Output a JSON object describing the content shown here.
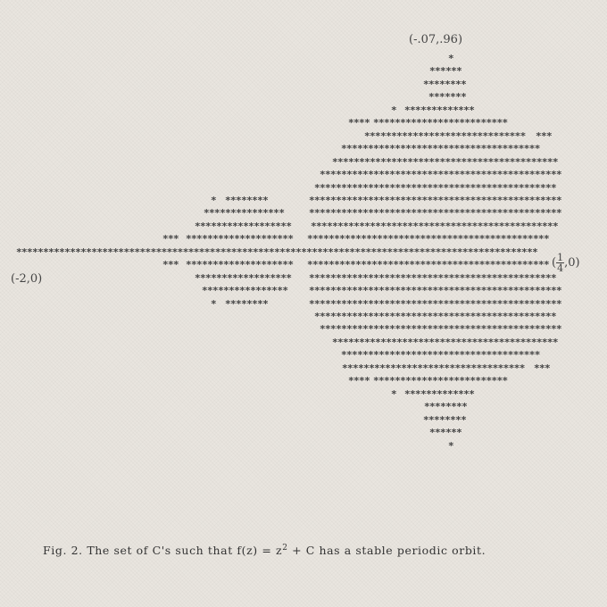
{
  "labels": {
    "top": "(-.07,.96)",
    "left": "(-2,0)",
    "right_num": "1",
    "right_den": "4",
    "right_suffix": ",0)",
    "right_prefix": "("
  },
  "caption": {
    "prefix": "Fig. 2.  The set of  C's  such that  f(z) = z",
    "exponent": "2",
    "suffix": " + C  has a stable periodic orbit."
  },
  "rows": [
    {
      "segs": [
        [
          502,
          509
        ]
      ]
    },
    {
      "segs": [
        [
          481,
          517
        ]
      ]
    },
    {
      "segs": [
        [
          474,
          524
        ]
      ]
    },
    {
      "segs": [
        [
          480,
          524
        ]
      ]
    },
    {
      "segs": [
        [
          438,
          445
        ],
        [
          453,
          532
        ]
      ]
    },
    {
      "segs": [
        [
          390,
          413
        ],
        [
          418,
          568
        ]
      ]
    },
    {
      "segs": [
        [
          408,
          589
        ],
        [
          600,
          620
        ]
      ]
    },
    {
      "segs": [
        [
          382,
          607
        ]
      ]
    },
    {
      "segs": [
        [
          372,
          627
        ]
      ]
    },
    {
      "segs": [
        [
          358,
          634
        ]
      ]
    },
    {
      "segs": [
        [
          352,
          625
        ]
      ]
    },
    {
      "segs": [
        [
          236,
          243
        ],
        [
          252,
          298
        ],
        [
          346,
          634
        ]
      ]
    },
    {
      "segs": [
        [
          228,
          322
        ],
        [
          346,
          634
        ]
      ]
    },
    {
      "segs": [
        [
          218,
          330
        ],
        [
          348,
          628
        ]
      ]
    },
    {
      "segs": [
        [
          182,
          200
        ],
        [
          208,
          330
        ],
        [
          344,
          616
        ]
      ]
    },
    {
      "segs": [
        [
          18,
          612
        ]
      ]
    },
    {
      "segs": [
        [
          182,
          200
        ],
        [
          208,
          330
        ],
        [
          344,
          618
        ]
      ]
    },
    {
      "segs": [
        [
          218,
          330
        ],
        [
          346,
          624
        ]
      ]
    },
    {
      "segs": [
        [
          226,
          322
        ],
        [
          346,
          634
        ]
      ]
    },
    {
      "segs": [
        [
          236,
          243
        ],
        [
          252,
          298
        ],
        [
          346,
          634
        ]
      ]
    },
    {
      "segs": [
        [
          352,
          624
        ]
      ]
    },
    {
      "segs": [
        [
          358,
          634
        ]
      ]
    },
    {
      "segs": [
        [
          372,
          627
        ]
      ]
    },
    {
      "segs": [
        [
          382,
          606
        ]
      ]
    },
    {
      "segs": [
        [
          383,
          589
        ],
        [
          598,
          614
        ]
      ]
    },
    {
      "segs": [
        [
          390,
          413
        ],
        [
          418,
          568
        ]
      ]
    },
    {
      "segs": [
        [
          438,
          445
        ],
        [
          453,
          532
        ]
      ]
    },
    {
      "segs": [
        [
          475,
          524
        ]
      ]
    },
    {
      "segs": [
        [
          474,
          524
        ]
      ]
    },
    {
      "segs": [
        [
          481,
          517
        ]
      ]
    },
    {
      "segs": [
        [
          502,
          509
        ]
      ]
    }
  ]
}
